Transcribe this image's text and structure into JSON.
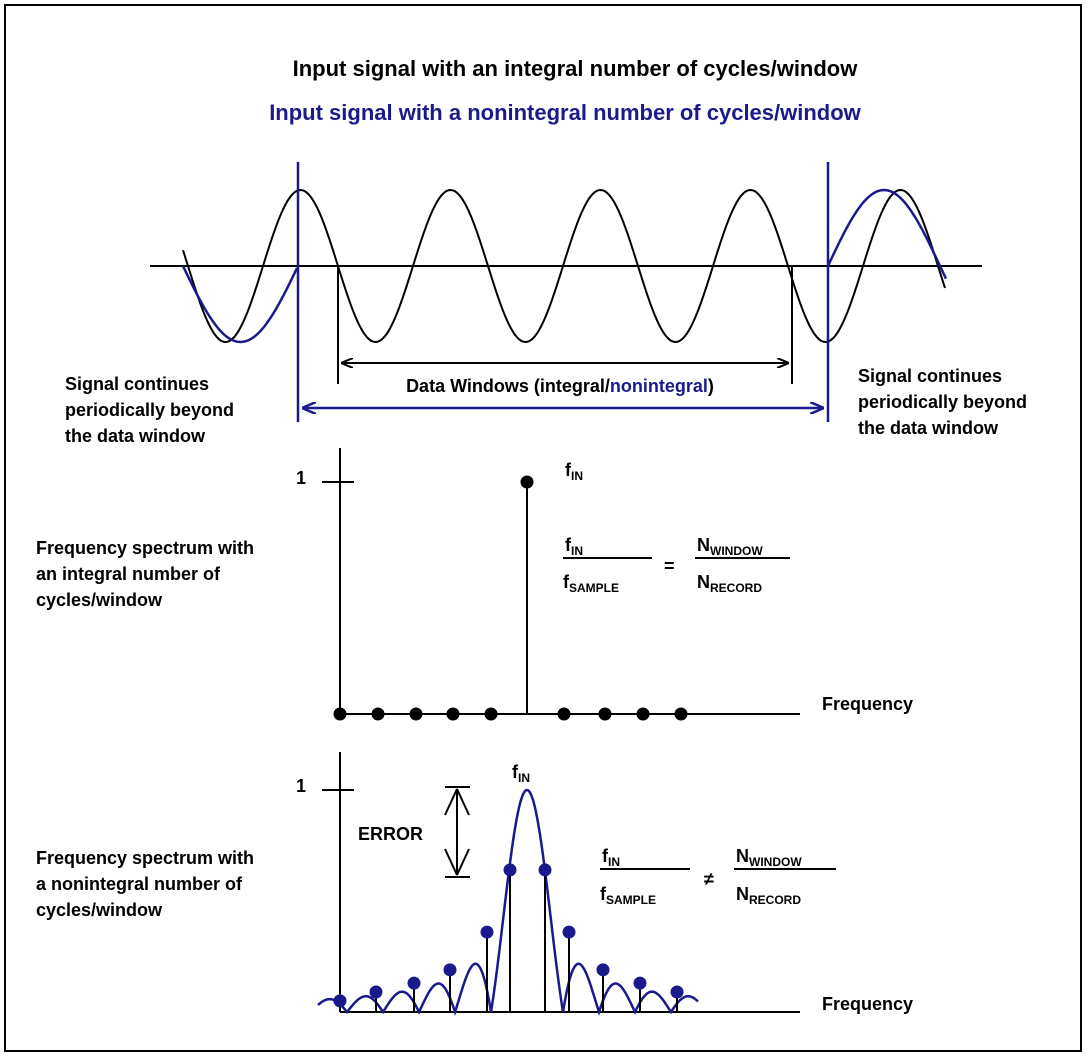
{
  "titles": {
    "integral": "Input signal with an integral number of cycles/window",
    "nonintegral": "Input signal with a nonintegral number of cycles/window"
  },
  "signal_notes": {
    "left": [
      "Signal continues",
      "periodically beyond",
      "the data window"
    ],
    "right": [
      "Signal continues",
      "periodically beyond",
      "the data window"
    ]
  },
  "data_window": {
    "prefix": "Data Windows (integral/",
    "nonintegral_word": "nonintegral",
    "suffix": ")"
  },
  "panel_integral": {
    "description": [
      "Frequency spectrum with",
      "an integral number of",
      "cycles/window"
    ],
    "axis_one": "1",
    "axis_label": "Frequency",
    "peak_label_main": "f",
    "peak_label_sub": "IN",
    "equation": {
      "num_main": "f",
      "num_sub": "IN",
      "den_main": "f",
      "den_sub": "SAMPLE",
      "operator": "=",
      "rnum_main": "N",
      "rnum_sub": "WINDOW",
      "rden_main": "N",
      "rden_sub": "RECORD"
    },
    "peak_value": 1,
    "bin_values": [
      0,
      0,
      0,
      0,
      0,
      1,
      0,
      0,
      0,
      0
    ]
  },
  "panel_nonintegral": {
    "description": [
      "Frequency spectrum with",
      "a nonintegral number of",
      "cycles/window"
    ],
    "axis_one": "1",
    "axis_label": "Frequency",
    "error_label": "ERROR",
    "peak_label_main": "f",
    "peak_label_sub": "IN",
    "equation": {
      "num_main": "f",
      "num_sub": "IN",
      "den_main": "f",
      "den_sub": "SAMPLE",
      "operator": "≠",
      "rnum_main": "N",
      "rnum_sub": "WINDOW",
      "rden_main": "N",
      "rden_sub": "RECORD"
    },
    "bin_values": [
      0.05,
      0.09,
      0.13,
      0.19,
      0.36,
      0.64,
      0.64,
      0.36,
      0.19,
      0.13,
      0.09,
      0.05
    ]
  },
  "colors": {
    "integral": "#000000",
    "nonintegral": "#1a1a8c"
  }
}
